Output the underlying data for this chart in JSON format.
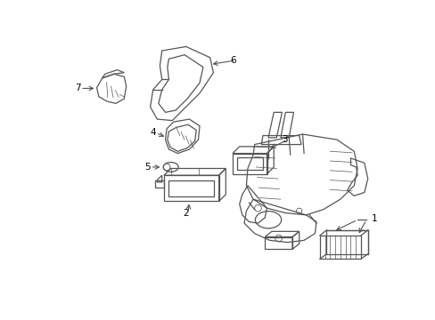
{
  "bg_color": "#ffffff",
  "line_color": "#555555",
  "text_color": "#000000",
  "fig_width": 4.89,
  "fig_height": 3.6,
  "dpi": 100,
  "lw": 0.9
}
